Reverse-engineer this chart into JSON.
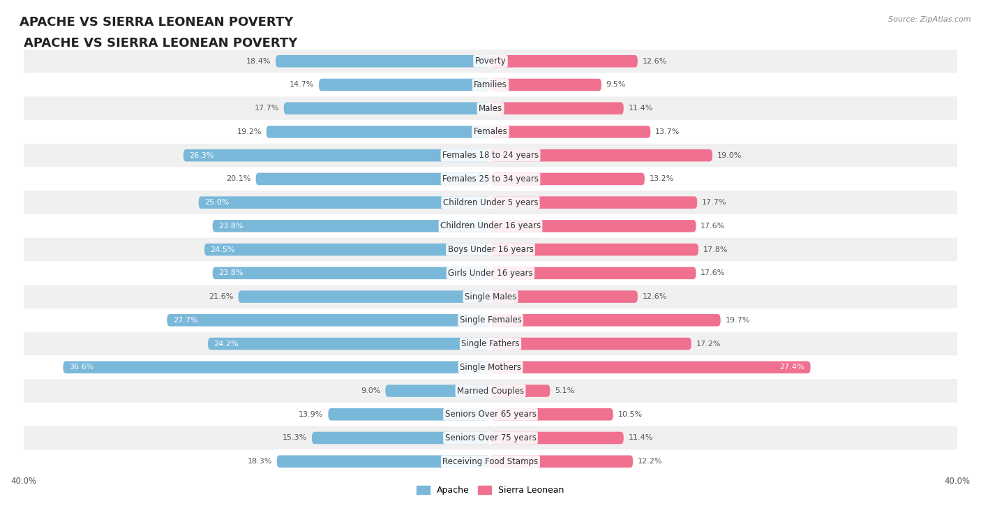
{
  "title": "APACHE VS SIERRA LEONEAN POVERTY",
  "source": "Source: ZipAtlas.com",
  "categories": [
    "Poverty",
    "Families",
    "Males",
    "Females",
    "Females 18 to 24 years",
    "Females 25 to 34 years",
    "Children Under 5 years",
    "Children Under 16 years",
    "Boys Under 16 years",
    "Girls Under 16 years",
    "Single Males",
    "Single Females",
    "Single Fathers",
    "Single Mothers",
    "Married Couples",
    "Seniors Over 65 years",
    "Seniors Over 75 years",
    "Receiving Food Stamps"
  ],
  "apache_values": [
    18.4,
    14.7,
    17.7,
    19.2,
    26.3,
    20.1,
    25.0,
    23.8,
    24.5,
    23.8,
    21.6,
    27.7,
    24.2,
    36.6,
    9.0,
    13.9,
    15.3,
    18.3
  ],
  "sierra_values": [
    12.6,
    9.5,
    11.4,
    13.7,
    19.0,
    13.2,
    17.7,
    17.6,
    17.8,
    17.6,
    12.6,
    19.7,
    17.2,
    27.4,
    5.1,
    10.5,
    11.4,
    12.2
  ],
  "apache_color": "#7ab8d9",
  "sierra_color": "#f07090",
  "apache_label": "Apache",
  "sierra_label": "Sierra Leonean",
  "xlim": 40.0,
  "row_colors": [
    "#f0f0f0",
    "#ffffff"
  ],
  "bar_height": 0.52,
  "title_fontsize": 13,
  "label_fontsize": 8.5,
  "value_fontsize": 8,
  "axis_label_fontsize": 8.5,
  "apache_white_threshold": 22.5,
  "sierra_white_threshold": 26.0
}
